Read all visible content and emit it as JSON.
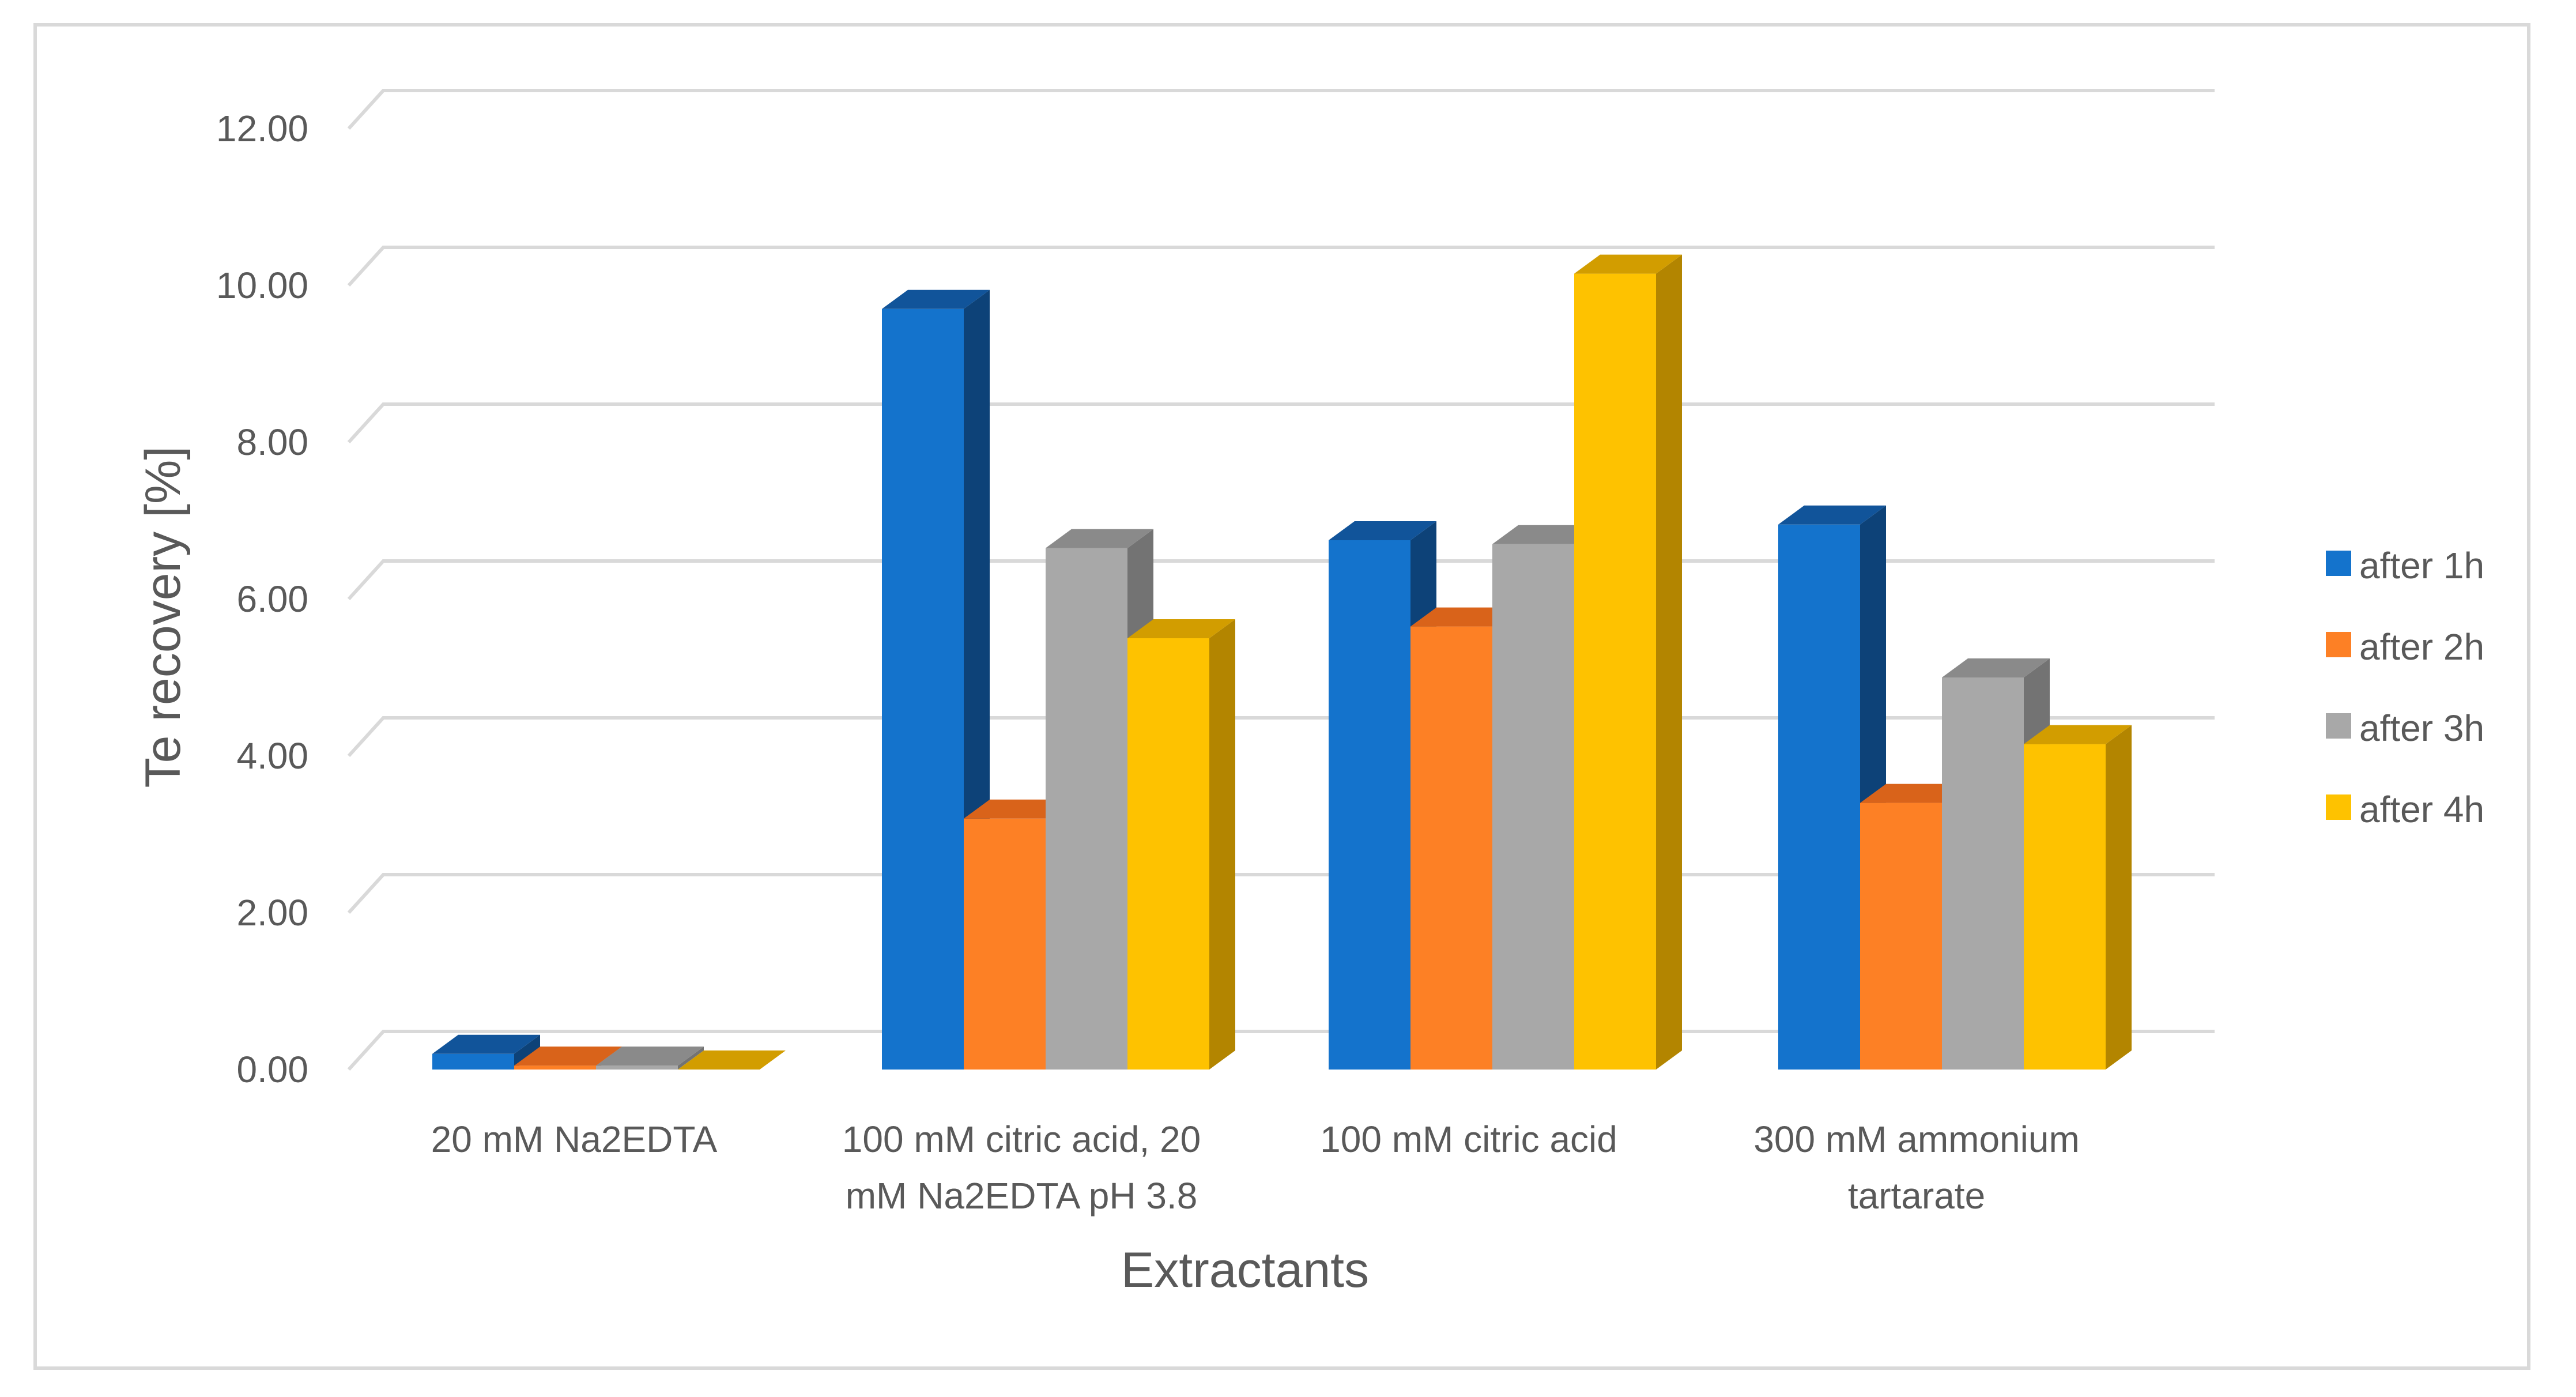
{
  "chart_data": {
    "type": "bar",
    "style": "3d-clustered-column",
    "title": "",
    "xlabel": "Extractants",
    "ylabel": "Te recovery [%]",
    "ylim": [
      0,
      12
    ],
    "yticks": [
      "0.00",
      "2.00",
      "4.00",
      "6.00",
      "8.00",
      "10.00",
      "12.00"
    ],
    "grid": true,
    "legend_position": "right",
    "categories": [
      [
        "20 mM Na2EDTA"
      ],
      [
        "100 mM citric acid, 20",
        "mM Na2EDTA pH 3.8"
      ],
      [
        "100 mM citric acid"
      ],
      [
        "300 mM ammonium",
        "tartarate"
      ]
    ],
    "series": [
      {
        "name": "after 1h",
        "color": "#1473cc",
        "top_color": "#11549a",
        "side_color": "#0d4278",
        "values": [
          0.2,
          9.7,
          6.75,
          6.95
        ]
      },
      {
        "name": "after 2h",
        "color": "#fd8025",
        "top_color": "#d9631a",
        "side_color": "#b35214",
        "values": [
          0.05,
          3.2,
          5.65,
          3.4
        ]
      },
      {
        "name": "after 3h",
        "color": "#a8a8a8",
        "top_color": "#8a8a8a",
        "side_color": "#737373",
        "values": [
          0.05,
          6.65,
          6.7,
          5.0
        ]
      },
      {
        "name": "after 4h",
        "color": "#fec200",
        "top_color": "#d29d00",
        "side_color": "#b38500",
        "values": [
          0.0,
          5.5,
          10.15,
          4.15
        ]
      }
    ]
  }
}
